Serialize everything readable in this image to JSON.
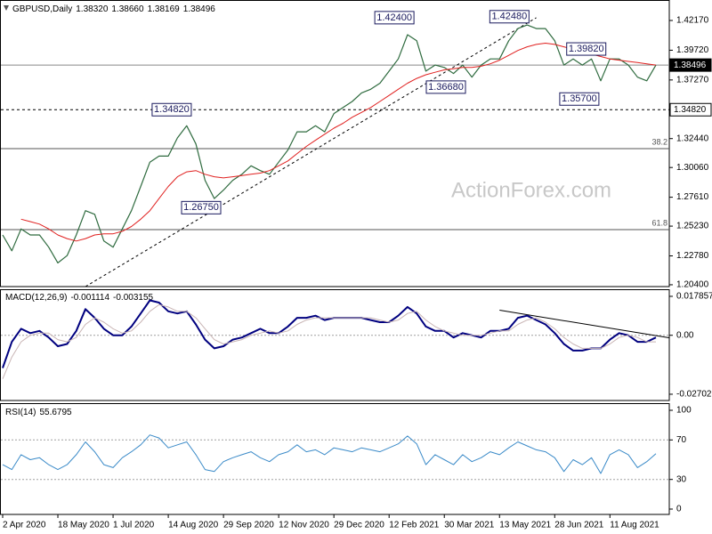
{
  "chart_data": [
    {
      "type": "line",
      "title": "GBPUSD,Daily",
      "quote": [
        {
          "value": 1.3832,
          "label": "1.38320"
        },
        {
          "value": 1.3866,
          "label": "1.38660"
        },
        {
          "value": 1.38169,
          "label": "1.38169"
        },
        {
          "value": 1.38496,
          "label": "1.38496"
        }
      ],
      "watermark": "ActionForex.com",
      "categories": [
        "2 Apr 2020",
        null,
        null,
        null,
        null,
        null,
        "18 May 2020",
        null,
        null,
        null,
        null,
        null,
        "1 Jul 2020",
        null,
        null,
        null,
        null,
        null,
        "14 Aug 2020",
        null,
        null,
        null,
        null,
        null,
        "29 Sep 2020",
        null,
        null,
        null,
        null,
        null,
        "12 Nov 2020",
        null,
        null,
        null,
        null,
        null,
        "29 Dec 2020",
        null,
        null,
        null,
        null,
        null,
        "12 Feb 2021",
        null,
        null,
        null,
        null,
        null,
        "30 Mar 2021",
        null,
        null,
        null,
        null,
        null,
        "13 May 2021",
        null,
        null,
        null,
        null,
        null,
        "28 Jun 2021",
        null,
        null,
        null,
        null,
        null,
        "11 Aug 2021",
        null,
        null,
        null,
        null,
        null
      ],
      "series": [
        {
          "color": "#2f6b3f",
          "width": 1.2,
          "values": [
            1.245,
            1.232,
            1.25,
            1.245,
            1.245,
            1.235,
            1.222,
            1.228,
            1.245,
            1.265,
            1.262,
            1.24,
            1.235,
            1.25,
            1.265,
            1.285,
            1.305,
            1.31,
            1.31,
            1.325,
            1.335,
            1.32,
            1.29,
            1.275,
            1.282,
            1.29,
            1.295,
            1.302,
            1.298,
            1.295,
            1.305,
            1.315,
            1.33,
            1.33,
            1.335,
            1.33,
            1.345,
            1.35,
            1.355,
            1.362,
            1.365,
            1.37,
            1.38,
            1.39,
            1.41,
            1.405,
            1.38,
            1.385,
            1.383,
            1.378,
            1.385,
            1.375,
            1.385,
            1.39,
            1.39,
            1.405,
            1.415,
            1.418,
            1.415,
            1.415,
            1.405,
            1.385,
            1.39,
            1.385,
            1.39,
            1.372,
            1.39,
            1.39,
            1.385,
            1.375,
            1.372,
            1.385
          ]
        },
        {
          "color": "#e0201f",
          "width": 1,
          "values": [
            null,
            null,
            1.258,
            1.256,
            1.254,
            1.25,
            1.245,
            1.242,
            1.24,
            1.242,
            1.245,
            1.246,
            1.246,
            1.248,
            1.252,
            1.258,
            1.265,
            1.275,
            1.285,
            1.293,
            1.297,
            1.298,
            1.295,
            1.293,
            1.292,
            1.293,
            1.294,
            1.295,
            1.296,
            1.298,
            1.302,
            1.306,
            1.312,
            1.318,
            1.323,
            1.328,
            1.333,
            1.337,
            1.342,
            1.346,
            1.35,
            1.355,
            1.36,
            1.365,
            1.37,
            1.374,
            1.377,
            1.379,
            1.381,
            1.382,
            1.383,
            1.383,
            1.384,
            1.386,
            1.389,
            1.393,
            1.397,
            1.4,
            1.402,
            1.403,
            1.402,
            1.4,
            1.398,
            1.396,
            1.394,
            1.392,
            1.39,
            1.389,
            1.388,
            1.387,
            1.386,
            1.385
          ]
        }
      ],
      "ylim": [
        1.2025,
        1.4371
      ],
      "yticks": [
        {
          "value": 1.4217,
          "label": "1.42170"
        },
        {
          "value": 1.3972,
          "label": "1.39720"
        },
        {
          "value": 1.3727,
          "label": "1.37270"
        },
        {
          "value": 1.3244,
          "label": "1.32440"
        },
        {
          "value": 1.3006,
          "label": "1.30060"
        },
        {
          "value": 1.2761,
          "label": "1.27610"
        },
        {
          "value": 1.2523,
          "label": "1.25230"
        },
        {
          "value": 1.2278,
          "label": "1.22780"
        },
        {
          "value": 1.204,
          "label": "1.20400"
        }
      ],
      "hlines": [
        {
          "value": 1.38496,
          "label": "1.38496",
          "style": "current"
        },
        {
          "value": 1.3482,
          "label": "1.34820",
          "style": "dashed"
        }
      ],
      "levels": [
        {
          "value": 1.3161,
          "label": "38.2"
        },
        {
          "value": 1.2494,
          "label": "61.8"
        }
      ],
      "annotations": [
        {
          "x": 44.7,
          "value": 1.424,
          "label": "1.42400",
          "align": "right"
        },
        {
          "x": 57.2,
          "value": 1.4248,
          "label": "1.42480",
          "align": "right"
        },
        {
          "x": 61.3,
          "value": 1.3982,
          "label": "1.39820",
          "align": "left"
        },
        {
          "x": 50.3,
          "value": 1.3668,
          "label": "1.36680",
          "align": "right"
        },
        {
          "x": 64.8,
          "value": 1.357,
          "label": "1.35700",
          "align": "right"
        },
        {
          "x": 20.5,
          "value": 1.3482,
          "label": "1.34820",
          "align": "right"
        },
        {
          "x": 23.7,
          "value": 1.2675,
          "label": "1.26750",
          "align": "right"
        }
      ],
      "trendline": [
        [
          9,
          1.2025
        ],
        [
          58,
          1.424
        ]
      ],
      "trendline_style": "dashed"
    },
    {
      "type": "line",
      "title": "MACD(12,26,9)",
      "quote": [
        -0.001114,
        -0.003155
      ],
      "series": [
        {
          "color": "#00007f",
          "width": 2,
          "values": [
            -0.015,
            -0.003,
            0.003,
            0.001,
            0.002,
            -0.001,
            -0.005,
            -0.004,
            0.002,
            0.012,
            0.008,
            0.003,
            0.0,
            0.0,
            0.004,
            0.01,
            0.016,
            0.015,
            0.011,
            0.01,
            0.011,
            0.005,
            -0.002,
            -0.006,
            -0.005,
            -0.002,
            -0.001,
            0.001,
            0.003,
            0.001,
            0.001,
            0.004,
            0.008,
            0.008,
            0.009,
            0.007,
            0.008,
            0.008,
            0.008,
            0.008,
            0.007,
            0.006,
            0.006,
            0.009,
            0.013,
            0.01,
            0.004,
            0.002,
            0.002,
            -0.001,
            0.001,
            0.0,
            -0.001,
            0.002,
            0.002,
            0.003,
            0.008,
            0.009,
            0.007,
            0.005,
            0.001,
            -0.004,
            -0.007,
            -0.007,
            -0.006,
            -0.006,
            -0.002,
            0.001,
            0.0,
            -0.003,
            -0.003,
            -0.001
          ]
        },
        {
          "color": "#c8b4b4",
          "width": 1,
          "values": [
            -0.02,
            -0.01,
            -0.003,
            0.0,
            0.001,
            0.001,
            -0.002,
            -0.003,
            -0.001,
            0.005,
            0.008,
            0.006,
            0.003,
            0.001,
            0.002,
            0.006,
            0.011,
            0.014,
            0.013,
            0.011,
            0.011,
            0.008,
            0.003,
            -0.002,
            -0.004,
            -0.003,
            -0.002,
            0.0,
            0.001,
            0.002,
            0.001,
            0.002,
            0.005,
            0.007,
            0.008,
            0.008,
            0.008,
            0.008,
            0.008,
            0.008,
            0.008,
            0.007,
            0.006,
            0.007,
            0.01,
            0.011,
            0.007,
            0.004,
            0.002,
            0.001,
            0.0,
            0.0,
            0.0,
            0.001,
            0.002,
            0.002,
            0.005,
            0.007,
            0.008,
            0.006,
            0.003,
            -0.001,
            -0.004,
            -0.006,
            -0.006,
            -0.006,
            -0.004,
            -0.001,
            0.0,
            -0.001,
            -0.003,
            -0.003
          ]
        }
      ],
      "ylim": [
        -0.0299,
        0.0207
      ],
      "yticks": [
        0.017857,
        {
          "value": 0,
          "label": "0.00"
        },
        -0.027023
      ],
      "levels": [
        {
          "value": 0
        }
      ],
      "trendline": [
        [
          54,
          0.0115
        ],
        [
          72.5,
          -0.0012
        ]
      ],
      "trendline_style": "solid"
    },
    {
      "type": "line",
      "title": "RSI(14)",
      "quote": [
        55.6795
      ],
      "series": [
        {
          "color": "#3a8ac8",
          "width": 1,
          "values": [
            45,
            40,
            55,
            50,
            52,
            45,
            40,
            45,
            55,
            68,
            58,
            45,
            42,
            52,
            58,
            65,
            75,
            72,
            62,
            65,
            68,
            55,
            40,
            38,
            48,
            52,
            55,
            58,
            52,
            48,
            55,
            58,
            65,
            58,
            60,
            55,
            62,
            60,
            58,
            62,
            60,
            58,
            62,
            66,
            74,
            66,
            45,
            55,
            50,
            45,
            55,
            48,
            52,
            58,
            55,
            62,
            68,
            64,
            60,
            58,
            52,
            38,
            50,
            45,
            52,
            36,
            55,
            60,
            55,
            42,
            48,
            56
          ]
        }
      ],
      "ylim": [
        -5.4,
        106.3
      ],
      "yticks": [
        100,
        70,
        30,
        0
      ],
      "levels": [
        {
          "value": 70
        },
        {
          "value": 30
        }
      ]
    }
  ]
}
